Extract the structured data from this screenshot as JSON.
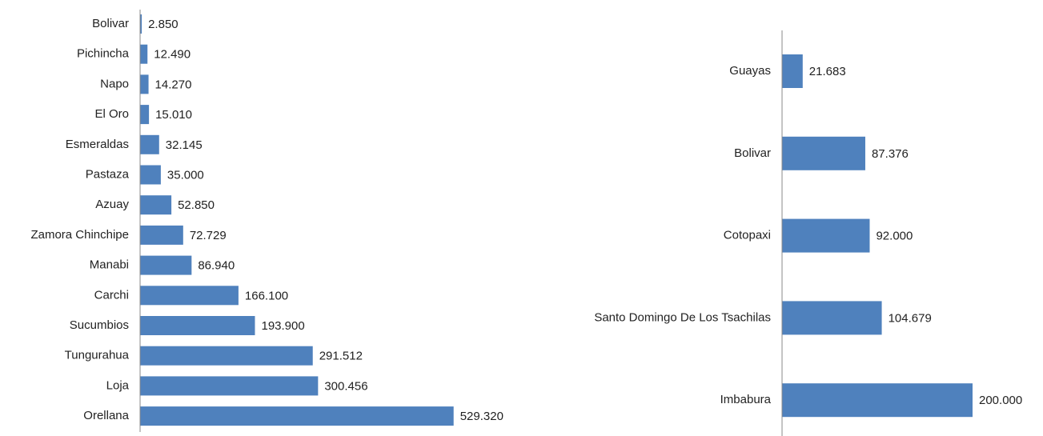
{
  "chart_data": [
    {
      "type": "bar",
      "orientation": "horizontal",
      "color": "#4f81bd",
      "categories": [
        "Bolivar",
        "Pichincha",
        "Napo",
        "El Oro",
        "Esmeraldas",
        "Pastaza",
        "Azuay",
        "Zamora Chinchipe",
        "Manabi",
        "Carchi",
        "Sucumbios",
        "Tungurahua",
        "Loja",
        "Orellana"
      ],
      "values": [
        2850,
        12490,
        14270,
        15010,
        32145,
        35000,
        52850,
        72729,
        86940,
        166100,
        193900,
        291512,
        300456,
        529320
      ],
      "value_labels": [
        "2.850",
        "12.490",
        "14.270",
        "15.010",
        "32.145",
        "35.000",
        "52.850",
        "72.729",
        "86.940",
        "166.100",
        "193.900",
        "291.512",
        "300.456",
        "529.320"
      ],
      "xlim": [
        0,
        600000
      ]
    },
    {
      "type": "bar",
      "orientation": "horizontal",
      "color": "#4f81bd",
      "categories": [
        "Guayas",
        "Bolivar",
        "Cotopaxi",
        "Santo Domingo De Los Tsachilas",
        "Imbabura"
      ],
      "values": [
        21683,
        87376,
        92000,
        104679,
        200000
      ],
      "value_labels": [
        "21.683",
        "87.376",
        "92.000",
        "104.679",
        "200.000"
      ],
      "xlim": [
        0,
        250000
      ]
    }
  ]
}
